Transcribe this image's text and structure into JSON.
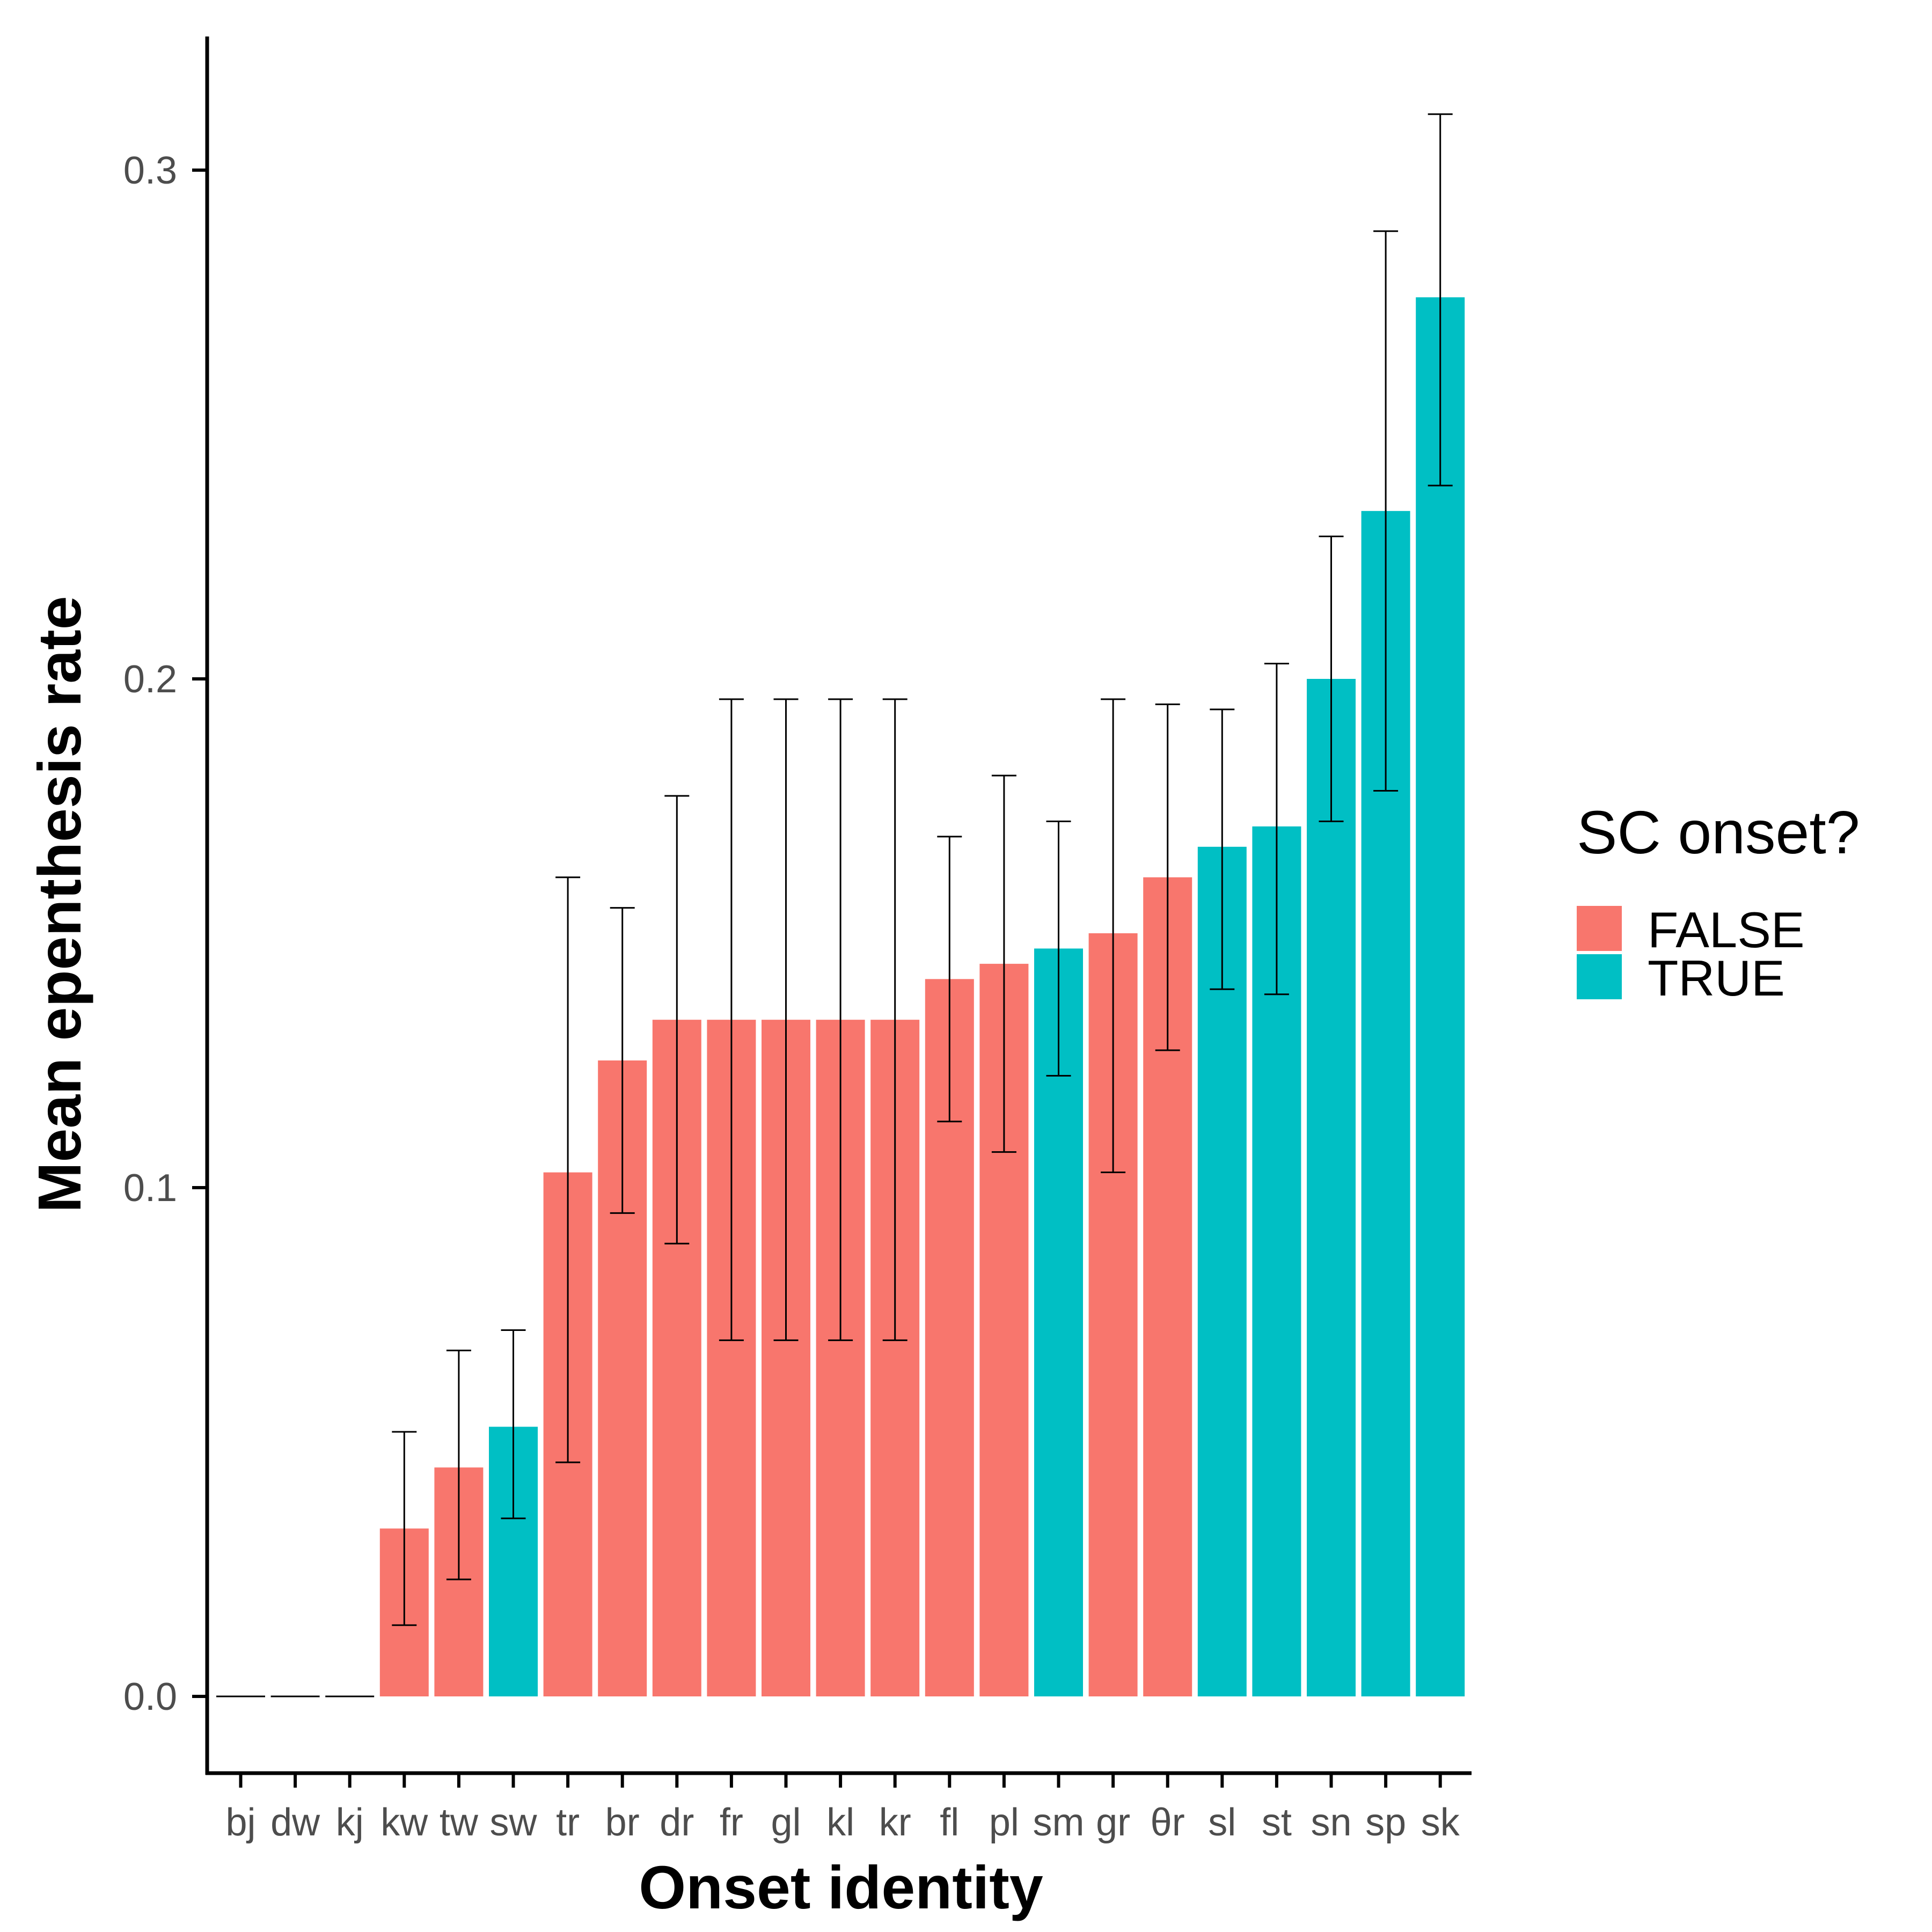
{
  "chart_data": {
    "type": "bar",
    "xlabel": "Onset identity",
    "ylabel": "Mean epenthesis rate",
    "ylim": [
      -0.015,
      0.33
    ],
    "yticks": [
      "0.0",
      "0.1",
      "0.2",
      "0.3"
    ],
    "legend": {
      "title": "SC onset?",
      "placement": "right",
      "entries": [
        {
          "label": "FALSE",
          "color": "#F8766D"
        },
        {
          "label": "TRUE",
          "color": "#00BFC4"
        }
      ]
    },
    "categories": [
      "bj",
      "dw",
      "kj",
      "kw",
      "tw",
      "sw",
      "tr",
      "br",
      "dr",
      "fr",
      "gl",
      "kl",
      "kr",
      "fl",
      "pl",
      "sm",
      "gr",
      "θr",
      "sl",
      "st",
      "sn",
      "sp",
      "sk"
    ],
    "sc_onset": [
      false,
      false,
      false,
      false,
      false,
      true,
      false,
      false,
      false,
      false,
      false,
      false,
      false,
      false,
      false,
      true,
      false,
      false,
      true,
      true,
      true,
      true,
      true
    ],
    "values": [
      0,
      0,
      0,
      0.033,
      0.045,
      0.053,
      0.103,
      0.125,
      0.133,
      0.133,
      0.133,
      0.133,
      0.133,
      0.141,
      0.144,
      0.147,
      0.15,
      0.161,
      0.167,
      0.171,
      0.2,
      0.233,
      0.275
    ],
    "ci_low": [
      null,
      null,
      null,
      0.014,
      0.023,
      0.035,
      0.046,
      0.095,
      0.089,
      0.07,
      0.07,
      0.07,
      0.07,
      0.113,
      0.107,
      0.122,
      0.103,
      0.127,
      0.139,
      0.138,
      0.172,
      0.178,
      0.238
    ],
    "ci_high": [
      null,
      null,
      null,
      0.052,
      0.068,
      0.072,
      0.161,
      0.155,
      0.177,
      0.196,
      0.196,
      0.196,
      0.196,
      0.169,
      0.181,
      0.172,
      0.196,
      0.195,
      0.194,
      0.203,
      0.228,
      0.288,
      0.311
    ],
    "colors": {
      "false": "#F8766D",
      "true": "#00BFC4"
    }
  }
}
